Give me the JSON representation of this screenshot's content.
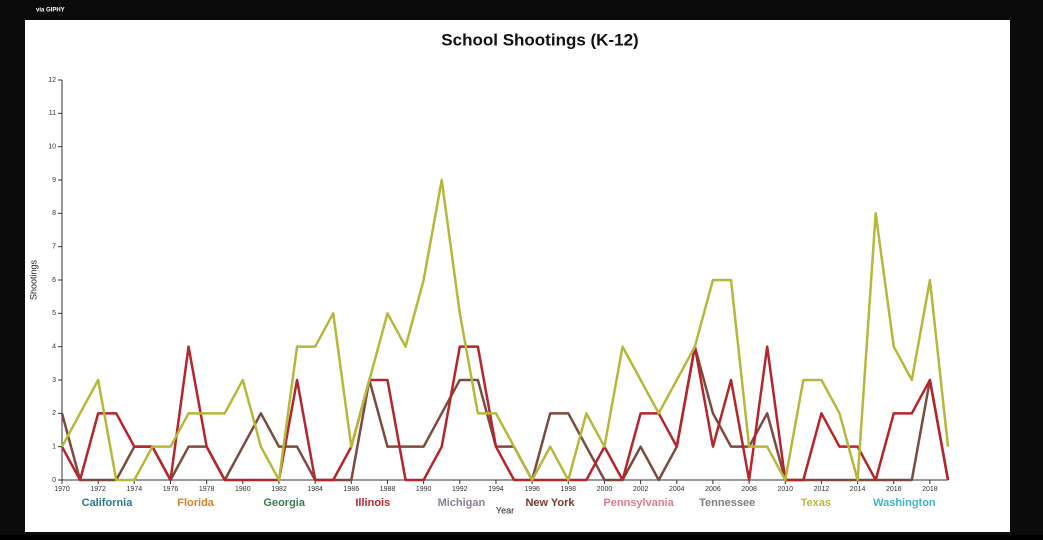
{
  "watermark": "via GIPHY",
  "chart_data": {
    "type": "line",
    "title": "School Shootings (K-12)",
    "x_label": "Year",
    "y_label": "Shootings",
    "x": [
      1970,
      1971,
      1972,
      1973,
      1974,
      1975,
      1976,
      1977,
      1978,
      1979,
      1980,
      1981,
      1982,
      1983,
      1984,
      1985,
      1986,
      1987,
      1988,
      1989,
      1990,
      1991,
      1992,
      1993,
      1994,
      1995,
      1996,
      1997,
      1998,
      1999,
      2000,
      2001,
      2002,
      2003,
      2004,
      2005,
      2006,
      2007,
      2008,
      2009,
      2010,
      2011,
      2012,
      2013,
      2014,
      2015,
      2016,
      2017,
      2018,
      2019
    ],
    "xlim": [
      1970,
      2019
    ],
    "xticks": [
      1970,
      1972,
      1974,
      1976,
      1978,
      1980,
      1982,
      1984,
      1986,
      1988,
      1990,
      1992,
      1994,
      1996,
      1998,
      2000,
      2002,
      2004,
      2006,
      2008,
      2010,
      2012,
      2014,
      2016,
      2018
    ],
    "ylim": [
      0,
      12
    ],
    "yticks": [
      0,
      1,
      2,
      3,
      4,
      5,
      6,
      7,
      8,
      9,
      10,
      11,
      12
    ],
    "legend": [
      {
        "name": "California",
        "color": "#2b7b8c"
      },
      {
        "name": "Florida",
        "color": "#d4822a"
      },
      {
        "name": "Georgia",
        "color": "#3d7a4f"
      },
      {
        "name": "Illinois",
        "color": "#c0272d"
      },
      {
        "name": "Michigan",
        "color": "#8a7f96"
      },
      {
        "name": "New York",
        "color": "#7a3b2e"
      },
      {
        "name": "Pennsylvania",
        "color": "#e07b91"
      },
      {
        "name": "Tennessee",
        "color": "#7f7f7f"
      },
      {
        "name": "Texas",
        "color": "#b8bb3a"
      },
      {
        "name": "Washington",
        "color": "#3fb4c8"
      }
    ],
    "series": [
      {
        "color": "#7d4a3e",
        "values": [
          2,
          0,
          0,
          0,
          1,
          1,
          0,
          1,
          1,
          0,
          1,
          2,
          1,
          1,
          0,
          0,
          0,
          3,
          1,
          1,
          1,
          2,
          3,
          3,
          1,
          1,
          0,
          2,
          2,
          1,
          0,
          0,
          1,
          0,
          1,
          4,
          2,
          1,
          1,
          2,
          0,
          0,
          0,
          0,
          0,
          0,
          0,
          0,
          3,
          0
        ]
      },
      {
        "color": "#b5252b",
        "values": [
          1,
          0,
          2,
          2,
          1,
          1,
          0,
          4,
          1,
          0,
          0,
          0,
          0,
          3,
          0,
          0,
          1,
          3,
          3,
          0,
          0,
          1,
          4,
          4,
          1,
          0,
          0,
          0,
          0,
          0,
          1,
          0,
          2,
          2,
          1,
          4,
          1,
          3,
          0,
          4,
          0,
          0,
          2,
          1,
          1,
          0,
          2,
          2,
          3,
          0
        ]
      },
      {
        "color": "#b5b83a",
        "values": [
          1,
          2,
          3,
          0,
          0,
          1,
          1,
          2,
          2,
          2,
          3,
          1,
          0,
          4,
          4,
          5,
          1,
          3,
          5,
          4,
          6,
          9,
          5,
          2,
          2,
          1,
          0,
          1,
          0,
          2,
          1,
          4,
          3,
          2,
          3,
          4,
          6,
          6,
          1,
          1,
          0,
          3,
          3,
          2,
          0,
          8,
          4,
          3,
          6,
          1
        ]
      }
    ]
  }
}
